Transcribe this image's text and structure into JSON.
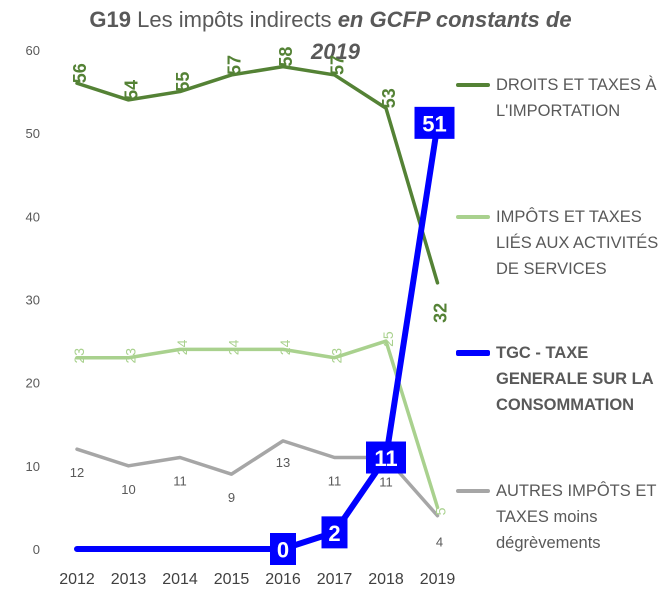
{
  "title": {
    "prefix": "G19",
    "main": "Les impôts indirects",
    "emph_line1": "en GCFP constants de",
    "emph_line2": "2019"
  },
  "chart_data": {
    "type": "line",
    "x": [
      "2012",
      "2013",
      "2014",
      "2015",
      "2016",
      "2017",
      "2018",
      "2019"
    ],
    "ylim": [
      0,
      60
    ],
    "yticks": [
      "0",
      "10",
      "20",
      "30",
      "40",
      "50",
      "60"
    ],
    "grid": false,
    "legend_position": "right",
    "series": [
      {
        "name": "DROITS ET TAXES À L'IMPORTATION",
        "values": [
          56,
          54,
          55,
          57,
          58,
          57,
          53,
          32
        ],
        "labels": [
          "56",
          "54",
          "55",
          "57",
          "58",
          "57",
          "53",
          "32"
        ],
        "color": "#548235",
        "style": "solid"
      },
      {
        "name": "IMPÔTS ET TAXES LIÉS AUX ACTIVITÉS DE SERVICES",
        "values": [
          23,
          23,
          24,
          24,
          24,
          23,
          25,
          5
        ],
        "labels": [
          "23",
          "23",
          "24",
          "24",
          "24",
          "23",
          "25",
          "5"
        ],
        "color": "#A9D18E",
        "style": "solid"
      },
      {
        "name": "TGC - TAXE GENERALE SUR LA CONSOMMATION",
        "values": [
          0,
          0,
          0,
          0,
          0,
          2,
          11,
          51
        ],
        "labels": [
          "",
          "",
          "",
          "",
          "0",
          "2",
          "11",
          "51"
        ],
        "color": "#0000FF",
        "style": "bold"
      },
      {
        "name": "AUTRES IMPÔTS ET TAXES moins dégrèvements",
        "values": [
          12,
          10,
          11,
          9,
          13,
          11,
          11,
          4
        ],
        "labels": [
          "12",
          "10",
          "11",
          "9",
          "13",
          "11",
          "11",
          "4"
        ],
        "color": "#A6A6A6",
        "style": "solid"
      }
    ]
  },
  "legend": [
    {
      "lines": [
        "DROITS ET TAXES À",
        "L'IMPORTATION"
      ]
    },
    {
      "lines": [
        "IMPÔTS ET TAXES",
        "LIÉS AUX ACTIVITÉS",
        "DE SERVICES"
      ]
    },
    {
      "lines": [
        "TGC - TAXE",
        "GENERALE SUR LA",
        "CONSOMMATION"
      ]
    },
    {
      "lines": [
        "AUTRES IMPÔTS ET",
        "TAXES moins",
        "dégrèvements"
      ]
    }
  ]
}
